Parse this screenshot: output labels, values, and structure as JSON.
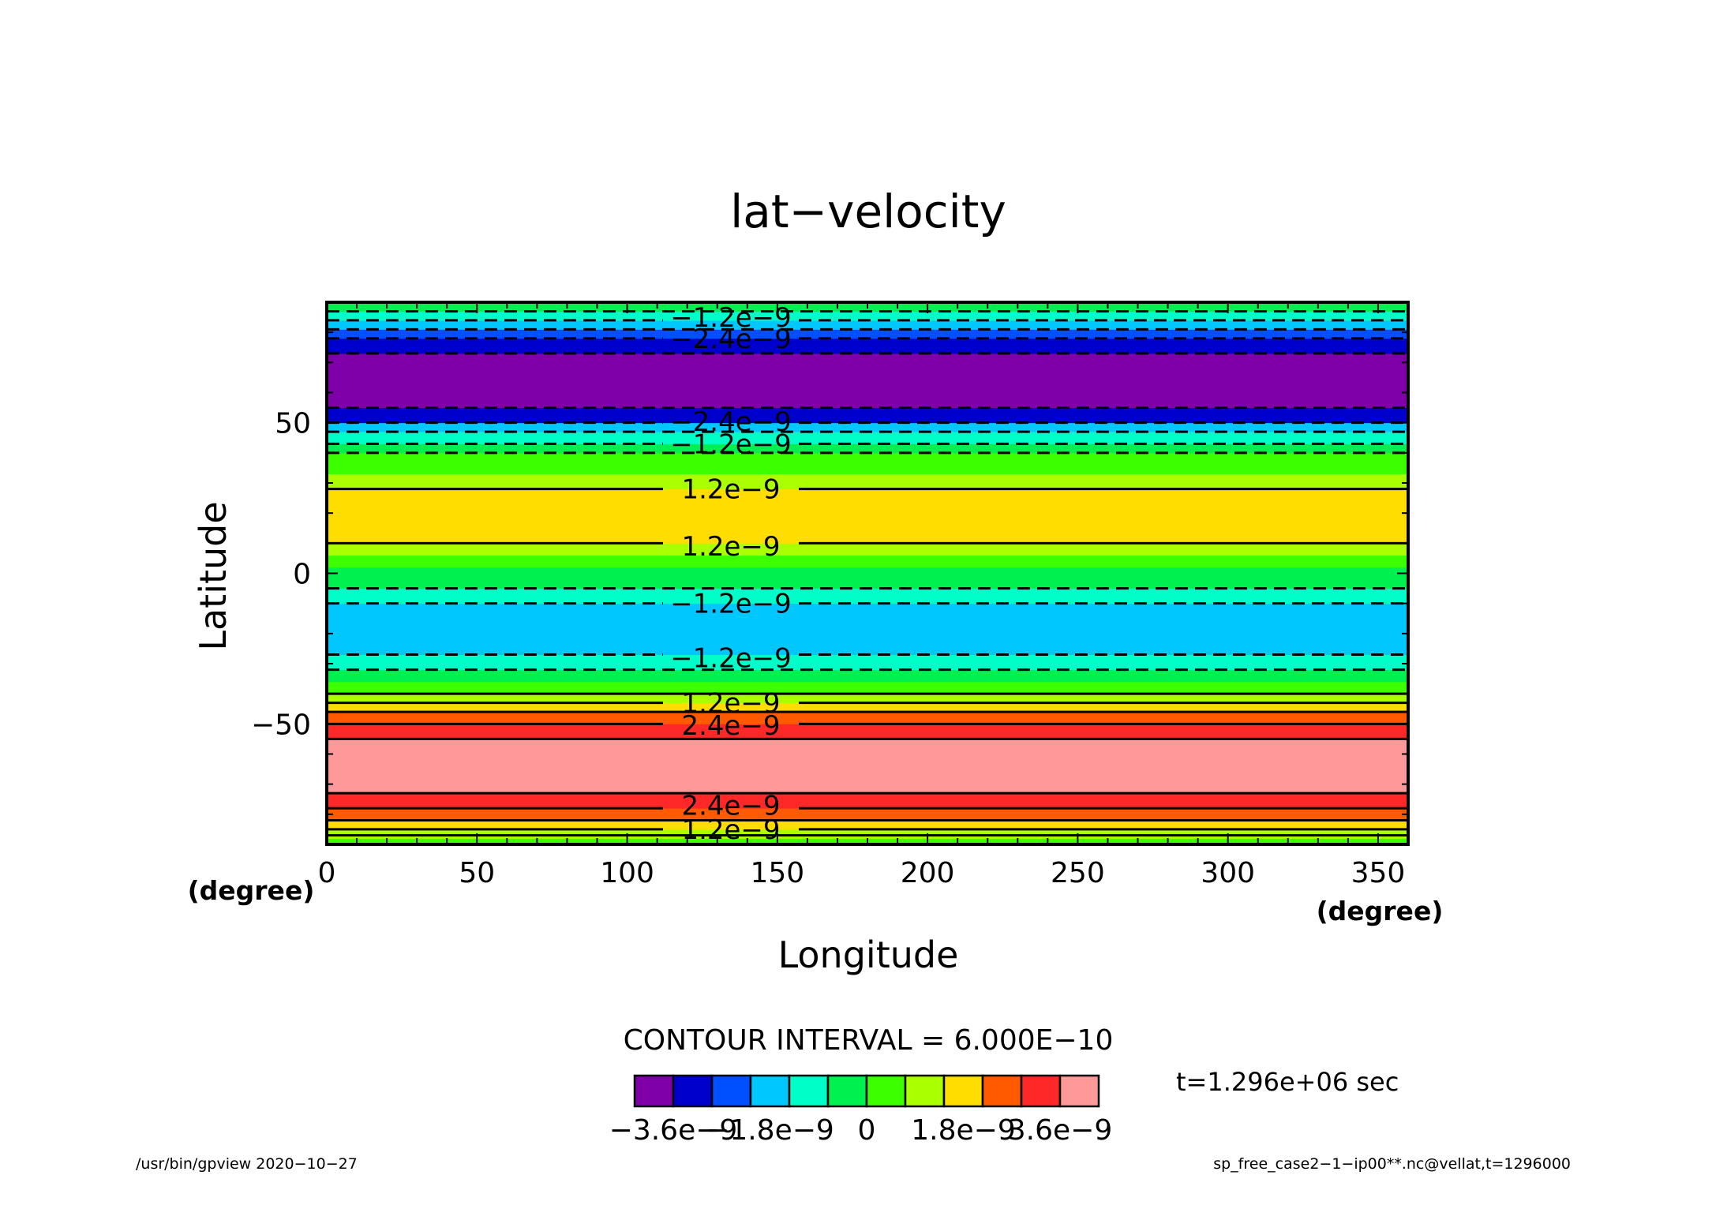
{
  "chart_data": {
    "type": "heatmap",
    "title": "lat−velocity",
    "xlabel": "Longitude",
    "ylabel": "Latitude",
    "x_unit_label": "(degree)",
    "y_unit_label": "(degree)",
    "xlim": [
      0,
      360
    ],
    "ylim": [
      -90,
      90
    ],
    "x_ticks": [
      0,
      50,
      100,
      150,
      200,
      250,
      300,
      350
    ],
    "x_tick_labels": [
      "0",
      "50",
      "100",
      "150",
      "200",
      "250",
      "300",
      "350"
    ],
    "y_ticks": [
      -50,
      0,
      50
    ],
    "y_tick_labels": [
      "−50",
      "0",
      "50"
    ],
    "contour_interval_text": "CONTOUR INTERVAL = 6.000E−10",
    "time_text": "t=1.296e+06 sec",
    "footer_left": "/usr/bin/gpview   2020−10−27",
    "footer_right": "sp_free_case2−1−ip00**.nc@vellat,t=1296000",
    "colorbar": {
      "colors": [
        "#7f00a8",
        "#0000cc",
        "#0050ff",
        "#00c8ff",
        "#00ffc8",
        "#00f050",
        "#3cff00",
        "#aaff00",
        "#ffdd00",
        "#ff5a00",
        "#ff2828",
        "#ff9999"
      ],
      "tick_labels": [
        "−3.6e−9",
        "−1.8e−9",
        "0",
        "1.8e−9",
        "3.6e−9"
      ],
      "tick_values": [
        -3.6e-09,
        -1.8e-09,
        0,
        1.8e-09,
        3.6e-09
      ]
    },
    "bands": [
      {
        "lat_from": -90,
        "lat_to": -88,
        "color": "#3cff00"
      },
      {
        "lat_from": -88,
        "lat_to": -85,
        "color": "#aaff00"
      },
      {
        "lat_from": -85,
        "lat_to": -82,
        "color": "#ffdd00"
      },
      {
        "lat_from": -82,
        "lat_to": -78,
        "color": "#ff5a00"
      },
      {
        "lat_from": -78,
        "lat_to": -73,
        "color": "#ff2828"
      },
      {
        "lat_from": -73,
        "lat_to": -55,
        "color": "#ff9999"
      },
      {
        "lat_from": -55,
        "lat_to": -50,
        "color": "#ff2828"
      },
      {
        "lat_from": -50,
        "lat_to": -46,
        "color": "#ff5a00"
      },
      {
        "lat_from": -46,
        "lat_to": -43,
        "color": "#ffdd00"
      },
      {
        "lat_from": -43,
        "lat_to": -40,
        "color": "#aaff00"
      },
      {
        "lat_from": -40,
        "lat_to": -36,
        "color": "#3cff00"
      },
      {
        "lat_from": -36,
        "lat_to": -32,
        "color": "#00f050"
      },
      {
        "lat_from": -32,
        "lat_to": -27,
        "color": "#00ffc8"
      },
      {
        "lat_from": -27,
        "lat_to": -10,
        "color": "#00c8ff"
      },
      {
        "lat_from": -10,
        "lat_to": -5,
        "color": "#00ffc8"
      },
      {
        "lat_from": -5,
        "lat_to": 2,
        "color": "#00f050"
      },
      {
        "lat_from": 2,
        "lat_to": 6,
        "color": "#3cff00"
      },
      {
        "lat_from": 6,
        "lat_to": 10,
        "color": "#aaff00"
      },
      {
        "lat_from": 10,
        "lat_to": 28,
        "color": "#ffdd00"
      },
      {
        "lat_from": 28,
        "lat_to": 33,
        "color": "#aaff00"
      },
      {
        "lat_from": 33,
        "lat_to": 40,
        "color": "#3cff00"
      },
      {
        "lat_from": 40,
        "lat_to": 43,
        "color": "#00f050"
      },
      {
        "lat_from": 43,
        "lat_to": 47,
        "color": "#00ffc8"
      },
      {
        "lat_from": 47,
        "lat_to": 50,
        "color": "#00c8ff"
      },
      {
        "lat_from": 50,
        "lat_to": 55,
        "color": "#0000cc"
      },
      {
        "lat_from": 55,
        "lat_to": 73,
        "color": "#7f00a8"
      },
      {
        "lat_from": 73,
        "lat_to": 78,
        "color": "#0000cc"
      },
      {
        "lat_from": 78,
        "lat_to": 81,
        "color": "#0050ff"
      },
      {
        "lat_from": 81,
        "lat_to": 84,
        "color": "#00c8ff"
      },
      {
        "lat_from": 84,
        "lat_to": 87,
        "color": "#00ffc8"
      },
      {
        "lat_from": 87,
        "lat_to": 90,
        "color": "#00f050"
      }
    ],
    "contour_lines": [
      {
        "lat": -87,
        "dashed": false
      },
      {
        "lat": -85,
        "dashed": false
      },
      {
        "lat": -82,
        "dashed": false
      },
      {
        "lat": -78,
        "dashed": false
      },
      {
        "lat": -73,
        "dashed": false
      },
      {
        "lat": -55,
        "dashed": false
      },
      {
        "lat": -50,
        "dashed": false
      },
      {
        "lat": -46,
        "dashed": false
      },
      {
        "lat": -43,
        "dashed": false
      },
      {
        "lat": -40,
        "dashed": false
      },
      {
        "lat": -32,
        "dashed": true
      },
      {
        "lat": -27,
        "dashed": true
      },
      {
        "lat": -10,
        "dashed": true
      },
      {
        "lat": -5,
        "dashed": true
      },
      {
        "lat": 10,
        "dashed": false
      },
      {
        "lat": 28,
        "dashed": false
      },
      {
        "lat": 40,
        "dashed": true
      },
      {
        "lat": 43,
        "dashed": true
      },
      {
        "lat": 47,
        "dashed": true
      },
      {
        "lat": 50,
        "dashed": true
      },
      {
        "lat": 55,
        "dashed": true
      },
      {
        "lat": 73,
        "dashed": true
      },
      {
        "lat": 78,
        "dashed": true
      },
      {
        "lat": 81,
        "dashed": true
      },
      {
        "lat": 84,
        "dashed": true
      },
      {
        "lat": 87,
        "dashed": true
      }
    ],
    "contour_labels": [
      {
        "lat": 85,
        "text": "−1.2e−9"
      },
      {
        "lat": 78,
        "text": "−2.4e−9"
      },
      {
        "lat": 50.5,
        "text": "−2.4e−9"
      },
      {
        "lat": 43,
        "text": "−1.2e−9"
      },
      {
        "lat": 28,
        "text": "1.2e−9"
      },
      {
        "lat": 9,
        "text": "1.2e−9"
      },
      {
        "lat": -10,
        "text": "−1.2e−9"
      },
      {
        "lat": -28,
        "text": "−1.2e−9"
      },
      {
        "lat": -43,
        "text": "1.2e−9"
      },
      {
        "lat": -50.5,
        "text": "2.4e−9"
      },
      {
        "lat": -77,
        "text": "2.4e−9"
      },
      {
        "lat": -85,
        "text": "1.2e−9"
      }
    ]
  }
}
